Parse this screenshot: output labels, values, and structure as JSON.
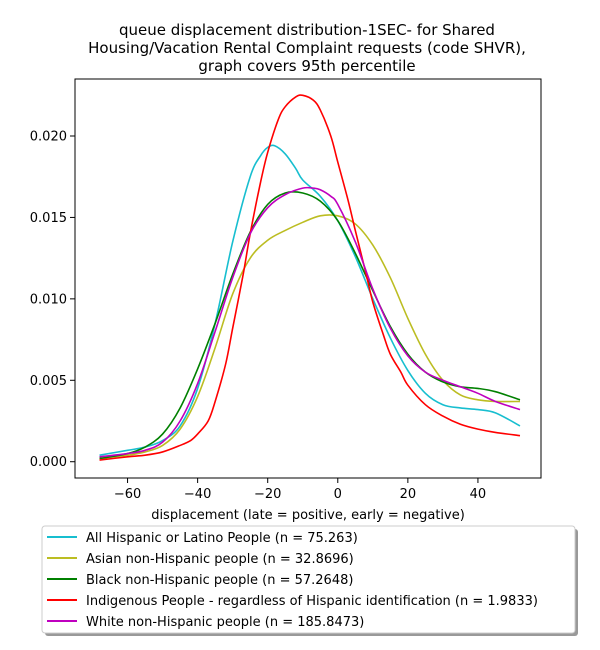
{
  "chart_data": {
    "type": "line",
    "title_lines": [
      "queue displacement distribution-1SEC-  for Shared",
      "Housing/Vacation Rental Complaint  requests (code SHVR),",
      "graph covers 95th percentile"
    ],
    "xlabel": "displacement (late = positive, early = negative)",
    "ylabel": "",
    "xlim": [
      -75,
      58
    ],
    "ylim": [
      -0.001,
      0.0235
    ],
    "x_ticks": [
      -60,
      -40,
      -20,
      0,
      20,
      40
    ],
    "x_tick_labels": [
      "−60",
      "−40",
      "−20",
      "0",
      "20",
      "40"
    ],
    "y_ticks": [
      0.0,
      0.005,
      0.01,
      0.015,
      0.02
    ],
    "y_tick_labels": [
      "0.000",
      "0.005",
      "0.010",
      "0.015",
      "0.020"
    ],
    "grid": false,
    "legend_placement": "below",
    "series": [
      {
        "name": "All Hispanic or Latino People (n = 75.263)",
        "color": "#17becf",
        "x": [
          -68,
          -60,
          -55,
          -50,
          -45,
          -40,
          -35,
          -30,
          -25,
          -22,
          -20,
          -18,
          -15,
          -12,
          -10,
          -5,
          0,
          5,
          10,
          15,
          20,
          25,
          30,
          35,
          40,
          45,
          52
        ],
        "y": [
          0.0004,
          0.0007,
          0.0009,
          0.0013,
          0.0022,
          0.0045,
          0.0085,
          0.0135,
          0.0175,
          0.0188,
          0.0193,
          0.0194,
          0.0189,
          0.018,
          0.0173,
          0.0163,
          0.0148,
          0.0126,
          0.01,
          0.0076,
          0.0056,
          0.0042,
          0.0035,
          0.0033,
          0.0032,
          0.003,
          0.0022
        ]
      },
      {
        "name": "Asian non-Hispanic people (n = 32.8696)",
        "color": "#bcbd22",
        "x": [
          -68,
          -60,
          -55,
          -50,
          -45,
          -40,
          -35,
          -30,
          -25,
          -20,
          -15,
          -10,
          -5,
          0,
          5,
          10,
          15,
          20,
          25,
          30,
          35,
          40,
          45,
          52
        ],
        "y": [
          0.0002,
          0.0004,
          0.0006,
          0.001,
          0.002,
          0.004,
          0.007,
          0.0103,
          0.0125,
          0.0136,
          0.0142,
          0.0147,
          0.0151,
          0.0151,
          0.0146,
          0.0133,
          0.0113,
          0.0088,
          0.0066,
          0.005,
          0.0041,
          0.0038,
          0.0037,
          0.0037
        ]
      },
      {
        "name": "Black non-Hispanic people (n = 57.2648)",
        "color": "#008000",
        "x": [
          -68,
          -60,
          -55,
          -50,
          -45,
          -40,
          -35,
          -30,
          -25,
          -20,
          -15,
          -10,
          -5,
          0,
          5,
          10,
          15,
          20,
          25,
          30,
          35,
          40,
          45,
          52
        ],
        "y": [
          0.0002,
          0.0005,
          0.0009,
          0.0017,
          0.0033,
          0.0057,
          0.0085,
          0.0115,
          0.0141,
          0.0158,
          0.0165,
          0.0165,
          0.016,
          0.0148,
          0.0128,
          0.0105,
          0.0083,
          0.0066,
          0.0055,
          0.0049,
          0.0046,
          0.0045,
          0.0043,
          0.0038
        ]
      },
      {
        "name": "Indigenous People - regardless of Hispanic identification (n = 1.9833)",
        "color": "#ff0000",
        "x": [
          -68,
          -60,
          -55,
          -50,
          -45,
          -42,
          -40,
          -37,
          -35,
          -32,
          -30,
          -27,
          -25,
          -22,
          -20,
          -17,
          -15,
          -12,
          -10,
          -7,
          -5,
          -2,
          0,
          3,
          5,
          8,
          10,
          13,
          15,
          18,
          20,
          25,
          30,
          35,
          40,
          45,
          52
        ],
        "y": [
          0.0001,
          0.0003,
          0.0004,
          0.0006,
          0.001,
          0.0013,
          0.0017,
          0.0025,
          0.0037,
          0.006,
          0.0082,
          0.0115,
          0.014,
          0.0172,
          0.019,
          0.021,
          0.0218,
          0.0224,
          0.0225,
          0.0222,
          0.0216,
          0.02,
          0.0184,
          0.016,
          0.0142,
          0.0116,
          0.0098,
          0.0078,
          0.0066,
          0.0055,
          0.0047,
          0.0035,
          0.0028,
          0.0023,
          0.002,
          0.0018,
          0.0016
        ]
      },
      {
        "name": "White non-Hispanic people (n = 185.8473)",
        "color": "#bf00bf",
        "x": [
          -68,
          -60,
          -55,
          -50,
          -45,
          -40,
          -35,
          -30,
          -25,
          -20,
          -15,
          -10,
          -7,
          -5,
          -2,
          0,
          5,
          10,
          15,
          20,
          25,
          30,
          35,
          40,
          45,
          52
        ],
        "y": [
          0.0003,
          0.0005,
          0.0007,
          0.0012,
          0.0025,
          0.0048,
          0.008,
          0.0113,
          0.014,
          0.0156,
          0.0164,
          0.0168,
          0.0168,
          0.0167,
          0.0163,
          0.0158,
          0.0135,
          0.0106,
          0.0082,
          0.0065,
          0.0055,
          0.005,
          0.0046,
          0.0042,
          0.0037,
          0.0032
        ]
      }
    ]
  }
}
